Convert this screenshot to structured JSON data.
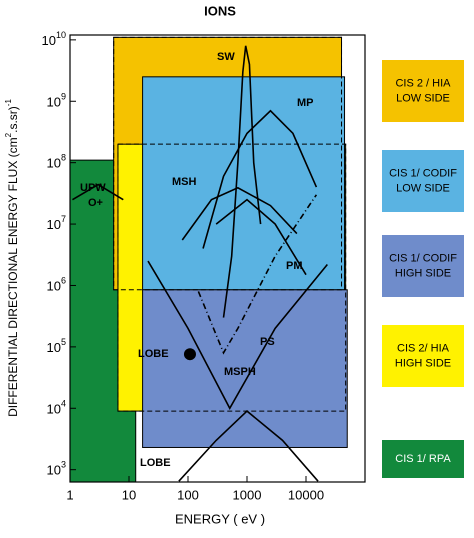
{
  "chart_data": {
    "type": "region-map",
    "title": "IONS",
    "x_label": "ENERGY  ( eV )",
    "y_label": [
      "DIFFERENTIAL DIRECTIONAL ENERGY FLUX (cm",
      "2",
      ".s.sr)",
      "-1"
    ],
    "log_x": true,
    "log_y": true,
    "xlim": [
      1,
      100000
    ],
    "ylim": [
      630,
      12000000000
    ],
    "xticks": [
      1,
      10,
      100,
      1000,
      10000
    ],
    "yticks": [
      {
        "value": 1000,
        "label": "10",
        "exponent": "3"
      },
      {
        "value": 10000,
        "label": "10",
        "exponent": "4"
      },
      {
        "value": 100000,
        "label": "10",
        "exponent": "5"
      },
      {
        "value": 1000000,
        "label": "10",
        "exponent": "6"
      },
      {
        "value": 10000000,
        "label": "10",
        "exponent": "7"
      },
      {
        "value": 100000000,
        "label": "10",
        "exponent": "8"
      },
      {
        "value": 1000000000,
        "label": "10",
        "exponent": "9"
      },
      {
        "value": 10000000000,
        "label": "10",
        "exponent": "10"
      }
    ],
    "regions": [
      {
        "name": [
          "CIS 2 / HIA",
          "LOW SIDE"
        ],
        "color": "#f5c200",
        "x": [
          5.5,
          40000
        ],
        "y": [
          850000,
          11000000000
        ],
        "outline": "dashed"
      },
      {
        "name": [
          "CIS 1/ CODIF",
          "LOW SIDE"
        ],
        "color": "#5ab3e2",
        "x": [
          17,
          45000
        ],
        "y": [
          850000,
          2500000000
        ],
        "outline": "none"
      },
      {
        "name": [
          "CIS 1/ CODIF",
          "HIGH SIDE"
        ],
        "color": "#6f8ccb",
        "x": [
          17,
          50000
        ],
        "y": [
          2300,
          850000
        ],
        "outline": "none"
      },
      {
        "name": [
          "CIS 2/ HIA",
          "HIGH SIDE"
        ],
        "color": "#fff200",
        "x": [
          6.5,
          47000
        ],
        "y": [
          9000,
          200000000
        ],
        "outline": "dashed"
      },
      {
        "name": [
          "CIS 1/ RPA"
        ],
        "color": "#12893c",
        "x": [
          1,
          13
        ],
        "y": [
          630,
          110000000
        ],
        "outline": "none"
      }
    ],
    "curves": [
      {
        "label": "SW",
        "style": "solid",
        "x": [
          400,
          550,
          700,
          850,
          950,
          1100,
          1300,
          1700
        ],
        "values": [
          300000,
          3000000,
          100000000,
          3000000000,
          8000000000,
          4000000000,
          100000000,
          10000000
        ]
      },
      {
        "label": "MP",
        "style": "solid",
        "x": [
          180,
          400,
          1000,
          2500,
          6000,
          15000
        ],
        "values": [
          4000000,
          60000000,
          300000000,
          700000000,
          300000000,
          40000000
        ]
      },
      {
        "label": "MSH",
        "style": "solid",
        "x": [
          80,
          250,
          700,
          2500,
          7000
        ],
        "values": [
          5500000,
          25000000,
          39000000,
          20000000,
          7000000
        ]
      },
      {
        "label": "PM",
        "style": "solid",
        "x": [
          300,
          1000,
          3000,
          10000
        ],
        "values": [
          10000000,
          25000000,
          10000000,
          1500000
        ]
      },
      {
        "label": [
          "UPW",
          "O+"
        ],
        "style": "solid",
        "x": [
          1.1,
          3,
          8
        ],
        "values": [
          25000000,
          44000000,
          25000000
        ]
      },
      {
        "label": "MSPH",
        "style": "solid",
        "x": [
          21,
          100,
          510,
          3000,
          23000
        ],
        "values": [
          2500000,
          200000,
          10000,
          200000,
          2200000
        ]
      },
      {
        "label": "PS",
        "style": "dashdot",
        "x": [
          150,
          400,
          700,
          3000,
          15000
        ],
        "values": [
          800000,
          80000,
          200000,
          3000000,
          30000000
        ]
      },
      {
        "label": "LOBE",
        "style": "solid",
        "x": [
          70,
          300,
          1000,
          4000,
          16000
        ],
        "values": [
          650,
          3000,
          9000,
          3000,
          650
        ]
      }
    ],
    "points": [
      {
        "label": "LOBE",
        "x": 108,
        "y": 76000
      }
    ]
  }
}
